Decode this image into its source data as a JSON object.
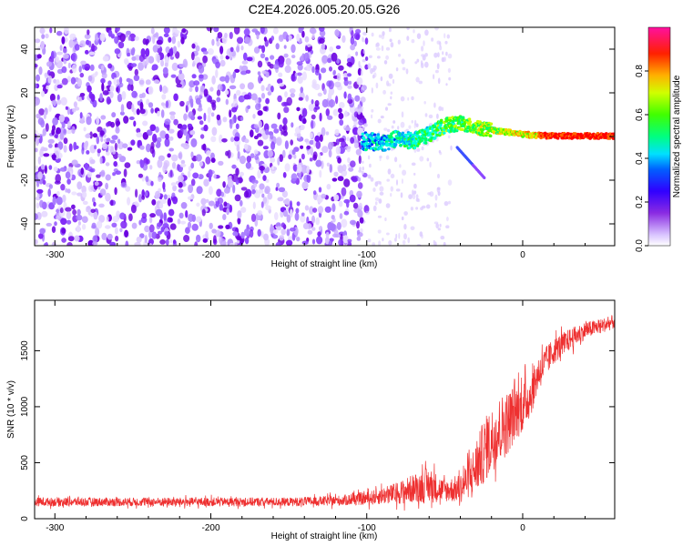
{
  "title": "C2E4.2026.005.20.05.G26",
  "chart_data": [
    {
      "type": "heatmap",
      "name": "spectrogram",
      "xlabel": "Height of straight line (km)",
      "ylabel": "Frequency (Hz)",
      "xlim": [
        -313,
        59
      ],
      "ylim": [
        -50,
        50
      ],
      "xticks": [
        -300,
        -200,
        -100,
        0
      ],
      "xtick_labels": [
        "-300",
        "-200",
        "-100",
        "0"
      ],
      "yticks": [
        -40,
        -20,
        0,
        20,
        40
      ],
      "ytick_labels": [
        "-40",
        "-20",
        "0",
        "20",
        "40"
      ],
      "colorbar": {
        "label": "Normalized spectral amplitude",
        "range": [
          0.0,
          1.0
        ],
        "ticks": [
          0.0,
          0.2,
          0.4,
          0.6,
          0.8
        ],
        "tick_labels": [
          "0.0",
          "0.2",
          "0.4",
          "0.6",
          "0.8"
        ],
        "colormap": [
          "#ffffff",
          "#b28cff",
          "#7a00ff",
          "#0000ff",
          "#00ffff",
          "#00ff00",
          "#ffff00",
          "#ff8000",
          "#ff0000",
          "#ff00a0"
        ]
      },
      "features": {
        "noise_region_km": [
          -313,
          -100
        ],
        "signal_track": [
          {
            "x": -103,
            "y": -2
          },
          {
            "x": -90,
            "y": -3
          },
          {
            "x": -80,
            "y": -1
          },
          {
            "x": -70,
            "y": -2
          },
          {
            "x": -60,
            "y": 1
          },
          {
            "x": -50,
            "y": 5
          },
          {
            "x": -40,
            "y": 6
          },
          {
            "x": -30,
            "y": 4
          },
          {
            "x": -20,
            "y": 3
          },
          {
            "x": -10,
            "y": 2
          },
          {
            "x": 0,
            "y": 1
          },
          {
            "x": 10,
            "y": 0.5
          },
          {
            "x": 20,
            "y": 0.3
          },
          {
            "x": 59,
            "y": 0.2
          }
        ]
      }
    },
    {
      "type": "line",
      "name": "snr",
      "xlabel": "Height of straight line (km)",
      "ylabel": "SNR (10 * v/v)",
      "xlim": [
        -313,
        59
      ],
      "ylim": [
        0,
        1950
      ],
      "xticks": [
        -300,
        -200,
        -100,
        0
      ],
      "xtick_labels": [
        "-300",
        "-200",
        "-100",
        "0"
      ],
      "yticks": [
        0,
        500,
        1000,
        1500
      ],
      "ytick_labels": [
        "0",
        "500",
        "1000",
        "1500"
      ],
      "series": [
        {
          "name": "SNR",
          "color": "#ee3030",
          "envelope": {
            "x": [
              -313,
              -250,
              -200,
              -150,
              -120,
              -100,
              -80,
              -70,
              -60,
              -50,
              -40,
              -30,
              -25,
              -20,
              -15,
              -10,
              -5,
              0,
              5,
              10,
              20,
              30,
              40,
              50,
              59
            ],
            "mean": [
              150,
              150,
              150,
              150,
              160,
              180,
              230,
              270,
              300,
              250,
              270,
              450,
              600,
              700,
              800,
              850,
              950,
              1000,
              1100,
              1300,
              1500,
              1600,
              1680,
              1720,
              1760
            ],
            "spread": [
              60,
              60,
              60,
              60,
              70,
              90,
              150,
              200,
              250,
              150,
              200,
              350,
              450,
              450,
              450,
              450,
              400,
              350,
              300,
              250,
              180,
              150,
              120,
              100,
              100
            ]
          }
        }
      ]
    }
  ]
}
